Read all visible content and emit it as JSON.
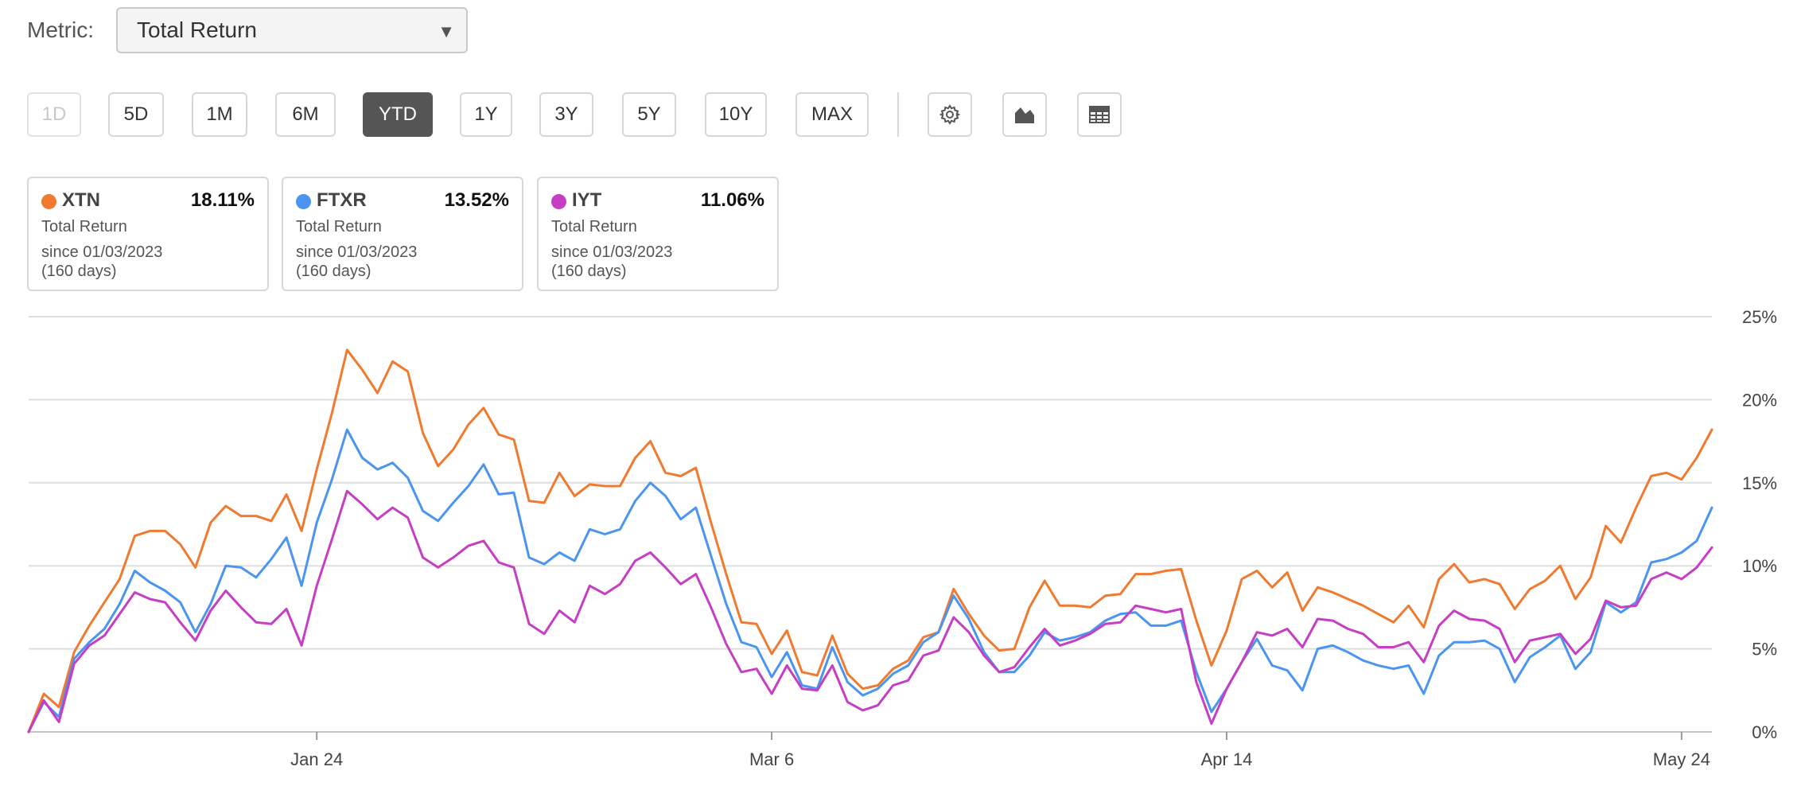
{
  "metric": {
    "label": "Metric:",
    "selected": "Total Return"
  },
  "ranges": [
    "1D",
    "5D",
    "1M",
    "6M",
    "YTD",
    "1Y",
    "3Y",
    "5Y",
    "10Y",
    "MAX"
  ],
  "active_range": "YTD",
  "disabled_range": "1D",
  "tools": [
    "gear-icon",
    "mountain-chart-icon",
    "table-icon"
  ],
  "cards": [
    {
      "symbol": "XTN",
      "value": "18.11%",
      "metric": "Total Return",
      "since": "since 01/03/2023",
      "days": "(160 days)",
      "color": "#ef7a30"
    },
    {
      "symbol": "FTXR",
      "value": "13.52%",
      "metric": "Total Return",
      "since": "since 01/03/2023",
      "days": "(160 days)",
      "color": "#4a95ef"
    },
    {
      "symbol": "IYT",
      "value": "11.06%",
      "metric": "Total Return",
      "since": "since 01/03/2023",
      "days": "(160 days)",
      "color": "#c53ec4"
    }
  ],
  "chart_data": {
    "type": "line",
    "title": "",
    "xlabel": "",
    "ylabel": "",
    "ylim": [
      0,
      25
    ],
    "yticks": [
      0,
      5,
      10,
      15,
      20,
      25
    ],
    "ytick_labels": [
      "0%",
      "5%",
      "10%",
      "15%",
      "20%",
      "25%"
    ],
    "xticks": [
      {
        "index": 19,
        "label": "Jan 24"
      },
      {
        "index": 49,
        "label": "Mar 6"
      },
      {
        "index": 79,
        "label": "Apr 14"
      },
      {
        "index": 109,
        "label": "May 24"
      }
    ],
    "grid": true,
    "legend": "cards-above",
    "series": [
      {
        "name": "XTN",
        "color": "#ef7a30",
        "values": [
          0,
          2.3,
          1.5,
          4.8,
          6.4,
          7.8,
          9.2,
          11.8,
          12.1,
          12.1,
          11.3,
          9.9,
          12.6,
          13.6,
          13.0,
          13.0,
          12.7,
          14.3,
          12.1,
          15.8,
          19.2,
          23.0,
          21.8,
          20.4,
          22.3,
          21.7,
          18.0,
          16.0,
          17.0,
          18.5,
          19.5,
          17.9,
          17.6,
          13.9,
          13.8,
          15.6,
          14.2,
          14.9,
          14.8,
          14.8,
          16.5,
          17.5,
          15.6,
          15.4,
          15.9,
          12.6,
          9.5,
          6.6,
          6.5,
          4.7,
          6.1,
          3.6,
          3.4,
          5.8,
          3.5,
          2.6,
          2.8,
          3.8,
          4.3,
          5.7,
          6.0,
          8.6,
          7.1,
          5.8,
          4.9,
          5.0,
          7.5,
          9.1,
          7.6,
          7.6,
          7.5,
          8.2,
          8.3,
          9.5,
          9.5,
          9.7,
          9.8,
          6.7,
          4.0,
          6.1,
          9.2,
          9.7,
          8.7,
          9.6,
          7.3,
          8.7,
          8.4,
          8.0,
          7.6,
          7.1,
          6.6,
          7.6,
          6.3,
          9.2,
          10.1,
          9.0,
          9.2,
          8.9,
          7.4,
          8.6,
          9.1,
          10.0,
          8.0,
          9.3,
          12.4,
          11.4,
          13.5,
          15.4,
          15.6,
          15.2,
          16.5,
          18.2
        ]
      },
      {
        "name": "FTXR",
        "color": "#4a95ef",
        "values": [
          0,
          1.8,
          0.9,
          4.4,
          5.4,
          6.2,
          7.7,
          9.7,
          9.0,
          8.5,
          7.8,
          6.0,
          7.7,
          10.0,
          9.9,
          9.3,
          10.4,
          11.7,
          8.8,
          12.6,
          15.2,
          18.2,
          16.5,
          15.8,
          16.2,
          15.3,
          13.3,
          12.7,
          13.8,
          14.8,
          16.1,
          14.3,
          14.4,
          10.5,
          10.1,
          10.8,
          10.3,
          12.2,
          11.9,
          12.2,
          13.9,
          15.0,
          14.2,
          12.8,
          13.5,
          10.6,
          7.7,
          5.4,
          5.1,
          3.3,
          4.8,
          2.8,
          2.6,
          5.1,
          3.0,
          2.2,
          2.6,
          3.5,
          4.0,
          5.4,
          6.0,
          8.2,
          6.8,
          4.8,
          3.6,
          3.6,
          4.6,
          6.0,
          5.5,
          5.7,
          6.0,
          6.7,
          7.1,
          7.2,
          6.4,
          6.4,
          6.7,
          3.6,
          1.2,
          2.6,
          4.2,
          5.6,
          4.0,
          3.7,
          2.5,
          5.0,
          5.2,
          4.8,
          4.3,
          4.0,
          3.8,
          4.0,
          2.3,
          4.6,
          5.4,
          5.4,
          5.5,
          5.0,
          3.0,
          4.5,
          5.1,
          5.8,
          3.8,
          4.8,
          7.8,
          7.2,
          7.8,
          10.2,
          10.4,
          10.8,
          11.5,
          13.5
        ]
      },
      {
        "name": "IYT",
        "color": "#c53ec4",
        "values": [
          0,
          1.9,
          0.6,
          4.1,
          5.2,
          5.8,
          7.1,
          8.4,
          8.0,
          7.8,
          6.6,
          5.5,
          7.3,
          8.5,
          7.5,
          6.6,
          6.5,
          7.4,
          5.2,
          8.8,
          11.6,
          14.5,
          13.7,
          12.8,
          13.5,
          12.9,
          10.5,
          9.9,
          10.5,
          11.2,
          11.5,
          10.2,
          9.9,
          6.5,
          5.9,
          7.3,
          6.6,
          8.8,
          8.3,
          8.9,
          10.3,
          10.8,
          9.9,
          8.9,
          9.5,
          7.5,
          5.3,
          3.6,
          3.8,
          2.3,
          4.0,
          2.6,
          2.5,
          4.0,
          1.8,
          1.3,
          1.6,
          2.8,
          3.1,
          4.6,
          4.9,
          6.9,
          6.0,
          4.6,
          3.6,
          3.9,
          5.1,
          6.2,
          5.2,
          5.5,
          5.9,
          6.5,
          6.6,
          7.6,
          7.4,
          7.2,
          7.4,
          3.0,
          0.5,
          2.6,
          4.2,
          6.0,
          5.8,
          6.2,
          5.1,
          6.8,
          6.7,
          6.2,
          5.9,
          5.1,
          5.1,
          5.4,
          4.2,
          6.4,
          7.3,
          6.8,
          6.7,
          6.2,
          4.2,
          5.5,
          5.7,
          5.9,
          4.7,
          5.6,
          7.9,
          7.5,
          7.6,
          9.2,
          9.6,
          9.2,
          9.9,
          11.1
        ]
      }
    ]
  }
}
